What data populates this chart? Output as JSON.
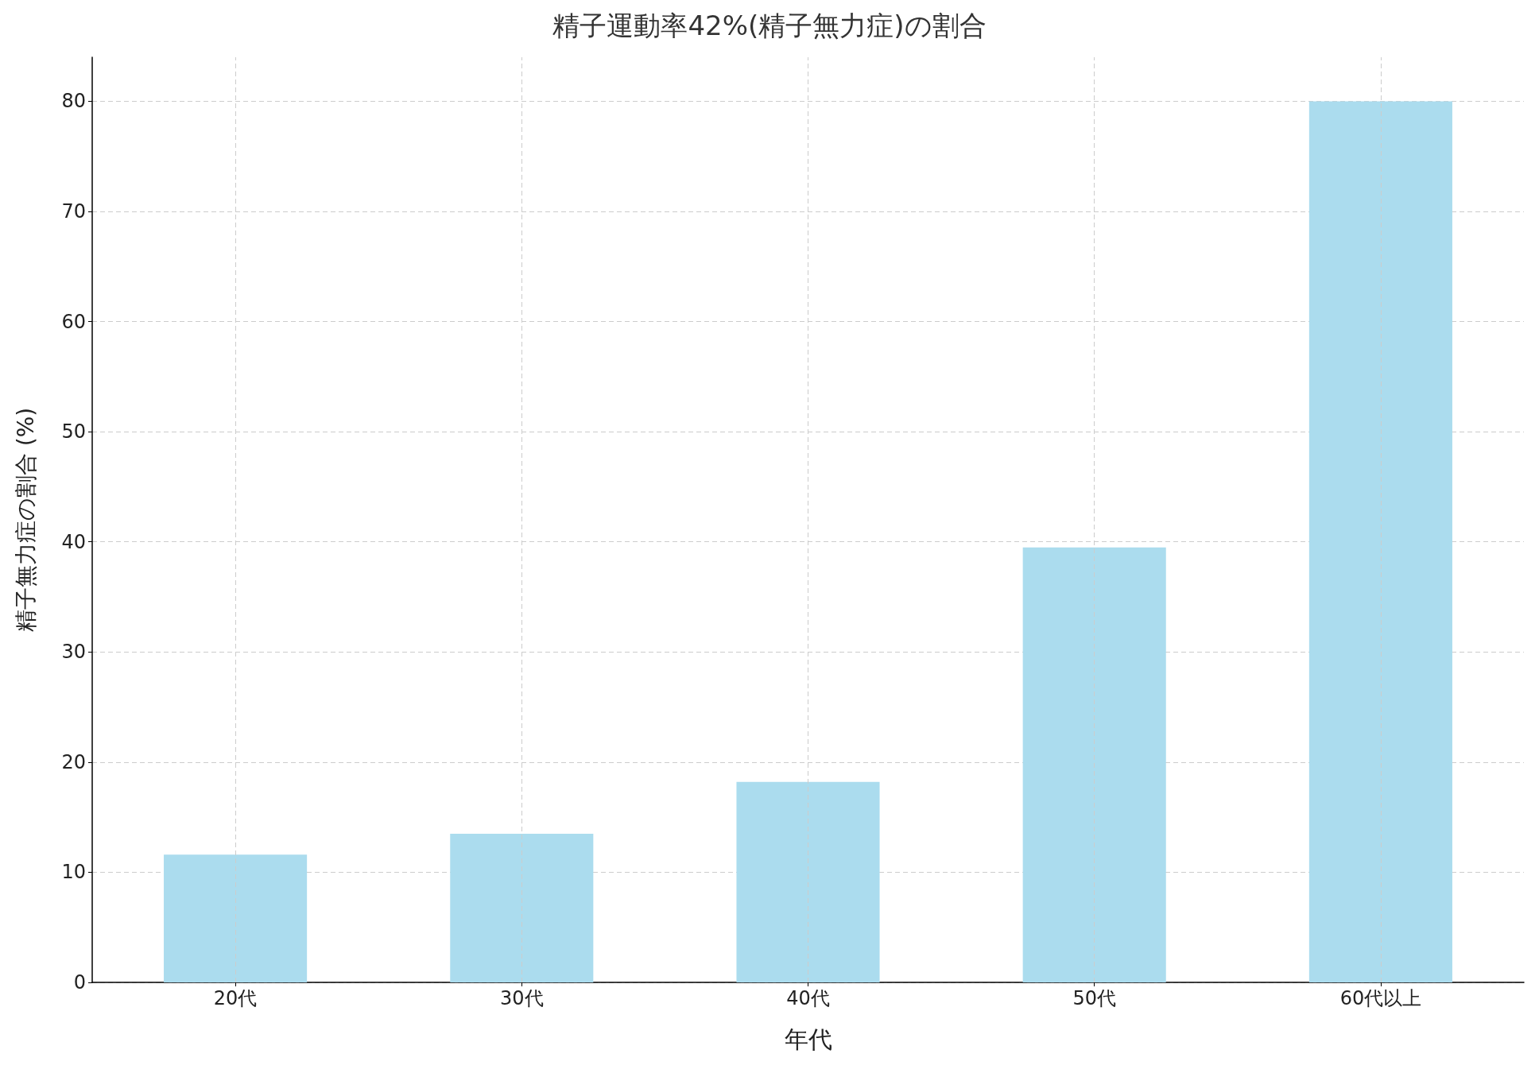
{
  "chart_data": {
    "type": "bar",
    "title": "精子運動率42%(精子無力症)の割合",
    "xlabel": "年代",
    "ylabel": "精子無力症の割合 (%)",
    "categories": [
      "20代",
      "30代",
      "40代",
      "50代",
      "60代以上"
    ],
    "values": [
      11.6,
      13.5,
      18.2,
      39.5,
      80
    ],
    "color": "#abdcee",
    "ylim": [
      0,
      84
    ],
    "yticks": [
      0,
      10,
      20,
      30,
      40,
      50,
      60,
      70,
      80
    ],
    "grid": true
  }
}
